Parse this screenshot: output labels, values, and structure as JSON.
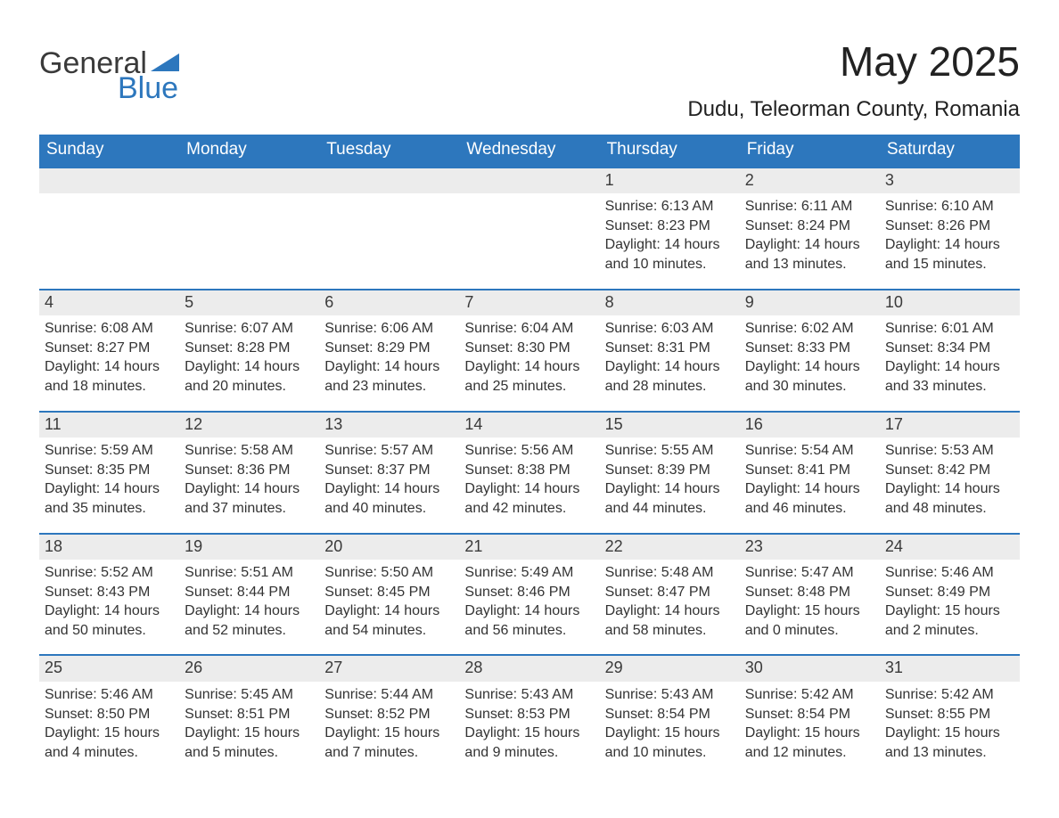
{
  "brand": {
    "word1": "General",
    "word2": "Blue",
    "triangle_color": "#2d77bd",
    "word1_color": "#3a3a3a",
    "word2_color": "#2d77bd"
  },
  "title": "May 2025",
  "location": "Dudu, Teleorman County, Romania",
  "colors": {
    "header_bg": "#2d77bd",
    "header_text": "#ffffff",
    "row_divider": "#2d77bd",
    "daynum_bg": "#ececec",
    "body_text": "#333333",
    "page_bg": "#ffffff"
  },
  "weekdays": [
    "Sunday",
    "Monday",
    "Tuesday",
    "Wednesday",
    "Thursday",
    "Friday",
    "Saturday"
  ],
  "weeks": [
    [
      {
        "n": "",
        "lines": []
      },
      {
        "n": "",
        "lines": []
      },
      {
        "n": "",
        "lines": []
      },
      {
        "n": "",
        "lines": []
      },
      {
        "n": "1",
        "lines": [
          "Sunrise: 6:13 AM",
          "Sunset: 8:23 PM",
          "Daylight: 14 hours and 10 minutes."
        ]
      },
      {
        "n": "2",
        "lines": [
          "Sunrise: 6:11 AM",
          "Sunset: 8:24 PM",
          "Daylight: 14 hours and 13 minutes."
        ]
      },
      {
        "n": "3",
        "lines": [
          "Sunrise: 6:10 AM",
          "Sunset: 8:26 PM",
          "Daylight: 14 hours and 15 minutes."
        ]
      }
    ],
    [
      {
        "n": "4",
        "lines": [
          "Sunrise: 6:08 AM",
          "Sunset: 8:27 PM",
          "Daylight: 14 hours and 18 minutes."
        ]
      },
      {
        "n": "5",
        "lines": [
          "Sunrise: 6:07 AM",
          "Sunset: 8:28 PM",
          "Daylight: 14 hours and 20 minutes."
        ]
      },
      {
        "n": "6",
        "lines": [
          "Sunrise: 6:06 AM",
          "Sunset: 8:29 PM",
          "Daylight: 14 hours and 23 minutes."
        ]
      },
      {
        "n": "7",
        "lines": [
          "Sunrise: 6:04 AM",
          "Sunset: 8:30 PM",
          "Daylight: 14 hours and 25 minutes."
        ]
      },
      {
        "n": "8",
        "lines": [
          "Sunrise: 6:03 AM",
          "Sunset: 8:31 PM",
          "Daylight: 14 hours and 28 minutes."
        ]
      },
      {
        "n": "9",
        "lines": [
          "Sunrise: 6:02 AM",
          "Sunset: 8:33 PM",
          "Daylight: 14 hours and 30 minutes."
        ]
      },
      {
        "n": "10",
        "lines": [
          "Sunrise: 6:01 AM",
          "Sunset: 8:34 PM",
          "Daylight: 14 hours and 33 minutes."
        ]
      }
    ],
    [
      {
        "n": "11",
        "lines": [
          "Sunrise: 5:59 AM",
          "Sunset: 8:35 PM",
          "Daylight: 14 hours and 35 minutes."
        ]
      },
      {
        "n": "12",
        "lines": [
          "Sunrise: 5:58 AM",
          "Sunset: 8:36 PM",
          "Daylight: 14 hours and 37 minutes."
        ]
      },
      {
        "n": "13",
        "lines": [
          "Sunrise: 5:57 AM",
          "Sunset: 8:37 PM",
          "Daylight: 14 hours and 40 minutes."
        ]
      },
      {
        "n": "14",
        "lines": [
          "Sunrise: 5:56 AM",
          "Sunset: 8:38 PM",
          "Daylight: 14 hours and 42 minutes."
        ]
      },
      {
        "n": "15",
        "lines": [
          "Sunrise: 5:55 AM",
          "Sunset: 8:39 PM",
          "Daylight: 14 hours and 44 minutes."
        ]
      },
      {
        "n": "16",
        "lines": [
          "Sunrise: 5:54 AM",
          "Sunset: 8:41 PM",
          "Daylight: 14 hours and 46 minutes."
        ]
      },
      {
        "n": "17",
        "lines": [
          "Sunrise: 5:53 AM",
          "Sunset: 8:42 PM",
          "Daylight: 14 hours and 48 minutes."
        ]
      }
    ],
    [
      {
        "n": "18",
        "lines": [
          "Sunrise: 5:52 AM",
          "Sunset: 8:43 PM",
          "Daylight: 14 hours and 50 minutes."
        ]
      },
      {
        "n": "19",
        "lines": [
          "Sunrise: 5:51 AM",
          "Sunset: 8:44 PM",
          "Daylight: 14 hours and 52 minutes."
        ]
      },
      {
        "n": "20",
        "lines": [
          "Sunrise: 5:50 AM",
          "Sunset: 8:45 PM",
          "Daylight: 14 hours and 54 minutes."
        ]
      },
      {
        "n": "21",
        "lines": [
          "Sunrise: 5:49 AM",
          "Sunset: 8:46 PM",
          "Daylight: 14 hours and 56 minutes."
        ]
      },
      {
        "n": "22",
        "lines": [
          "Sunrise: 5:48 AM",
          "Sunset: 8:47 PM",
          "Daylight: 14 hours and 58 minutes."
        ]
      },
      {
        "n": "23",
        "lines": [
          "Sunrise: 5:47 AM",
          "Sunset: 8:48 PM",
          "Daylight: 15 hours and 0 minutes."
        ]
      },
      {
        "n": "24",
        "lines": [
          "Sunrise: 5:46 AM",
          "Sunset: 8:49 PM",
          "Daylight: 15 hours and 2 minutes."
        ]
      }
    ],
    [
      {
        "n": "25",
        "lines": [
          "Sunrise: 5:46 AM",
          "Sunset: 8:50 PM",
          "Daylight: 15 hours and 4 minutes."
        ]
      },
      {
        "n": "26",
        "lines": [
          "Sunrise: 5:45 AM",
          "Sunset: 8:51 PM",
          "Daylight: 15 hours and 5 minutes."
        ]
      },
      {
        "n": "27",
        "lines": [
          "Sunrise: 5:44 AM",
          "Sunset: 8:52 PM",
          "Daylight: 15 hours and 7 minutes."
        ]
      },
      {
        "n": "28",
        "lines": [
          "Sunrise: 5:43 AM",
          "Sunset: 8:53 PM",
          "Daylight: 15 hours and 9 minutes."
        ]
      },
      {
        "n": "29",
        "lines": [
          "Sunrise: 5:43 AM",
          "Sunset: 8:54 PM",
          "Daylight: 15 hours and 10 minutes."
        ]
      },
      {
        "n": "30",
        "lines": [
          "Sunrise: 5:42 AM",
          "Sunset: 8:54 PM",
          "Daylight: 15 hours and 12 minutes."
        ]
      },
      {
        "n": "31",
        "lines": [
          "Sunrise: 5:42 AM",
          "Sunset: 8:55 PM",
          "Daylight: 15 hours and 13 minutes."
        ]
      }
    ]
  ]
}
